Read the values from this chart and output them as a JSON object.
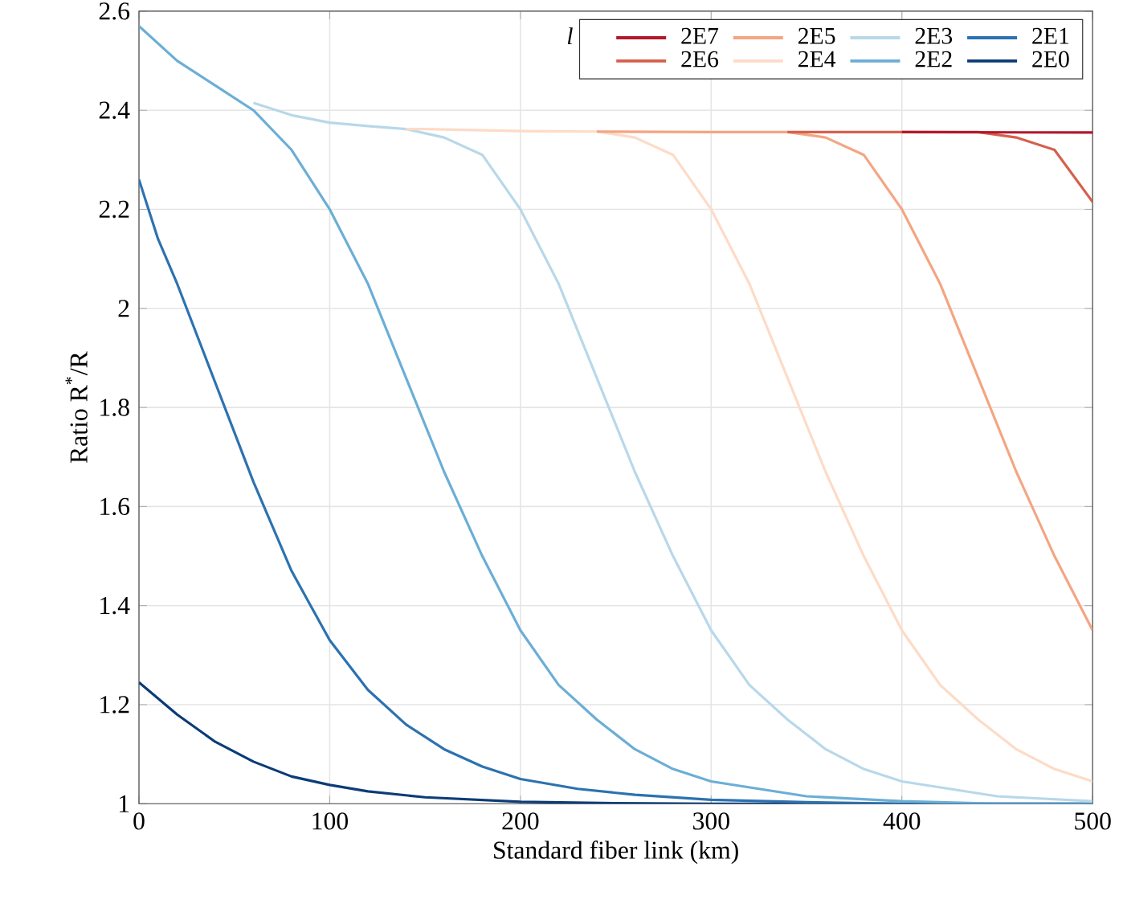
{
  "chart_data": {
    "type": "line",
    "xlabel": "Standard fiber link (km)",
    "ylabel": "Ratio R$^{*}$/R",
    "legend_title": "l",
    "xlim": [
      0,
      500
    ],
    "ylim": [
      1,
      2.6
    ],
    "xticks": [
      0,
      100,
      200,
      300,
      400,
      500
    ],
    "yticks": [
      1,
      1.2,
      1.4,
      1.6,
      1.8,
      2,
      2.2,
      2.4,
      2.6
    ],
    "grid": true,
    "legend": "top right",
    "line_style": "solid",
    "marker": "none",
    "series": [
      {
        "name": "2E7",
        "color": "#b2182b",
        "x": [
          400,
          500
        ],
        "values": [
          2.356,
          2.355
        ]
      },
      {
        "name": "2E6",
        "color": "#d6604d",
        "x": [
          340,
          440,
          460,
          480,
          500
        ],
        "values": [
          2.356,
          2.356,
          2.345,
          2.32,
          2.215
        ]
      },
      {
        "name": "2E5",
        "color": "#f4a582",
        "x": [
          240,
          300,
          340,
          360,
          380,
          400,
          420,
          440,
          460,
          480,
          500
        ],
        "values": [
          2.357,
          2.356,
          2.356,
          2.345,
          2.31,
          2.2,
          2.05,
          1.86,
          1.67,
          1.5,
          1.35
        ]
      },
      {
        "name": "2E4",
        "color": "#fddbc7",
        "x": [
          140,
          150,
          200,
          240,
          260,
          280,
          300,
          320,
          340,
          360,
          380,
          400,
          420,
          440,
          460,
          480,
          500
        ],
        "values": [
          2.362,
          2.362,
          2.358,
          2.357,
          2.345,
          2.31,
          2.2,
          2.05,
          1.86,
          1.67,
          1.5,
          1.35,
          1.24,
          1.17,
          1.11,
          1.07,
          1.045
        ]
      },
      {
        "name": "2E3",
        "color": "#b8d8ea",
        "x": [
          60,
          80,
          100,
          120,
          140,
          160,
          180,
          200,
          220,
          240,
          260,
          280,
          300,
          320,
          340,
          360,
          380,
          400,
          450,
          500
        ],
        "values": [
          2.415,
          2.39,
          2.375,
          2.368,
          2.362,
          2.345,
          2.31,
          2.2,
          2.05,
          1.86,
          1.67,
          1.5,
          1.35,
          1.24,
          1.17,
          1.11,
          1.07,
          1.045,
          1.015,
          1.005
        ]
      },
      {
        "name": "2E2",
        "color": "#6baed6",
        "x": [
          0,
          20,
          40,
          60,
          80,
          100,
          120,
          140,
          160,
          180,
          200,
          220,
          240,
          260,
          280,
          300,
          350,
          400,
          450,
          500
        ],
        "values": [
          2.57,
          2.5,
          2.45,
          2.4,
          2.32,
          2.2,
          2.05,
          1.86,
          1.67,
          1.5,
          1.35,
          1.24,
          1.17,
          1.11,
          1.07,
          1.045,
          1.015,
          1.005,
          1.0,
          1.0
        ]
      },
      {
        "name": "2E1",
        "color": "#2c72b0",
        "x": [
          0,
          10,
          20,
          30,
          40,
          50,
          60,
          70,
          80,
          90,
          100,
          120,
          140,
          160,
          180,
          200,
          230,
          260,
          300,
          350,
          400,
          500
        ],
        "values": [
          2.26,
          2.14,
          2.05,
          1.95,
          1.85,
          1.75,
          1.65,
          1.56,
          1.47,
          1.4,
          1.33,
          1.23,
          1.16,
          1.11,
          1.075,
          1.05,
          1.03,
          1.018,
          1.008,
          1.003,
          1.0,
          1.0
        ]
      },
      {
        "name": "2E0",
        "color": "#0b3c78",
        "x": [
          0,
          20,
          40,
          60,
          80,
          100,
          120,
          150,
          200,
          250,
          300,
          500
        ],
        "values": [
          1.245,
          1.18,
          1.125,
          1.085,
          1.055,
          1.038,
          1.025,
          1.013,
          1.004,
          1.001,
          1.0,
          1.0
        ]
      }
    ]
  }
}
